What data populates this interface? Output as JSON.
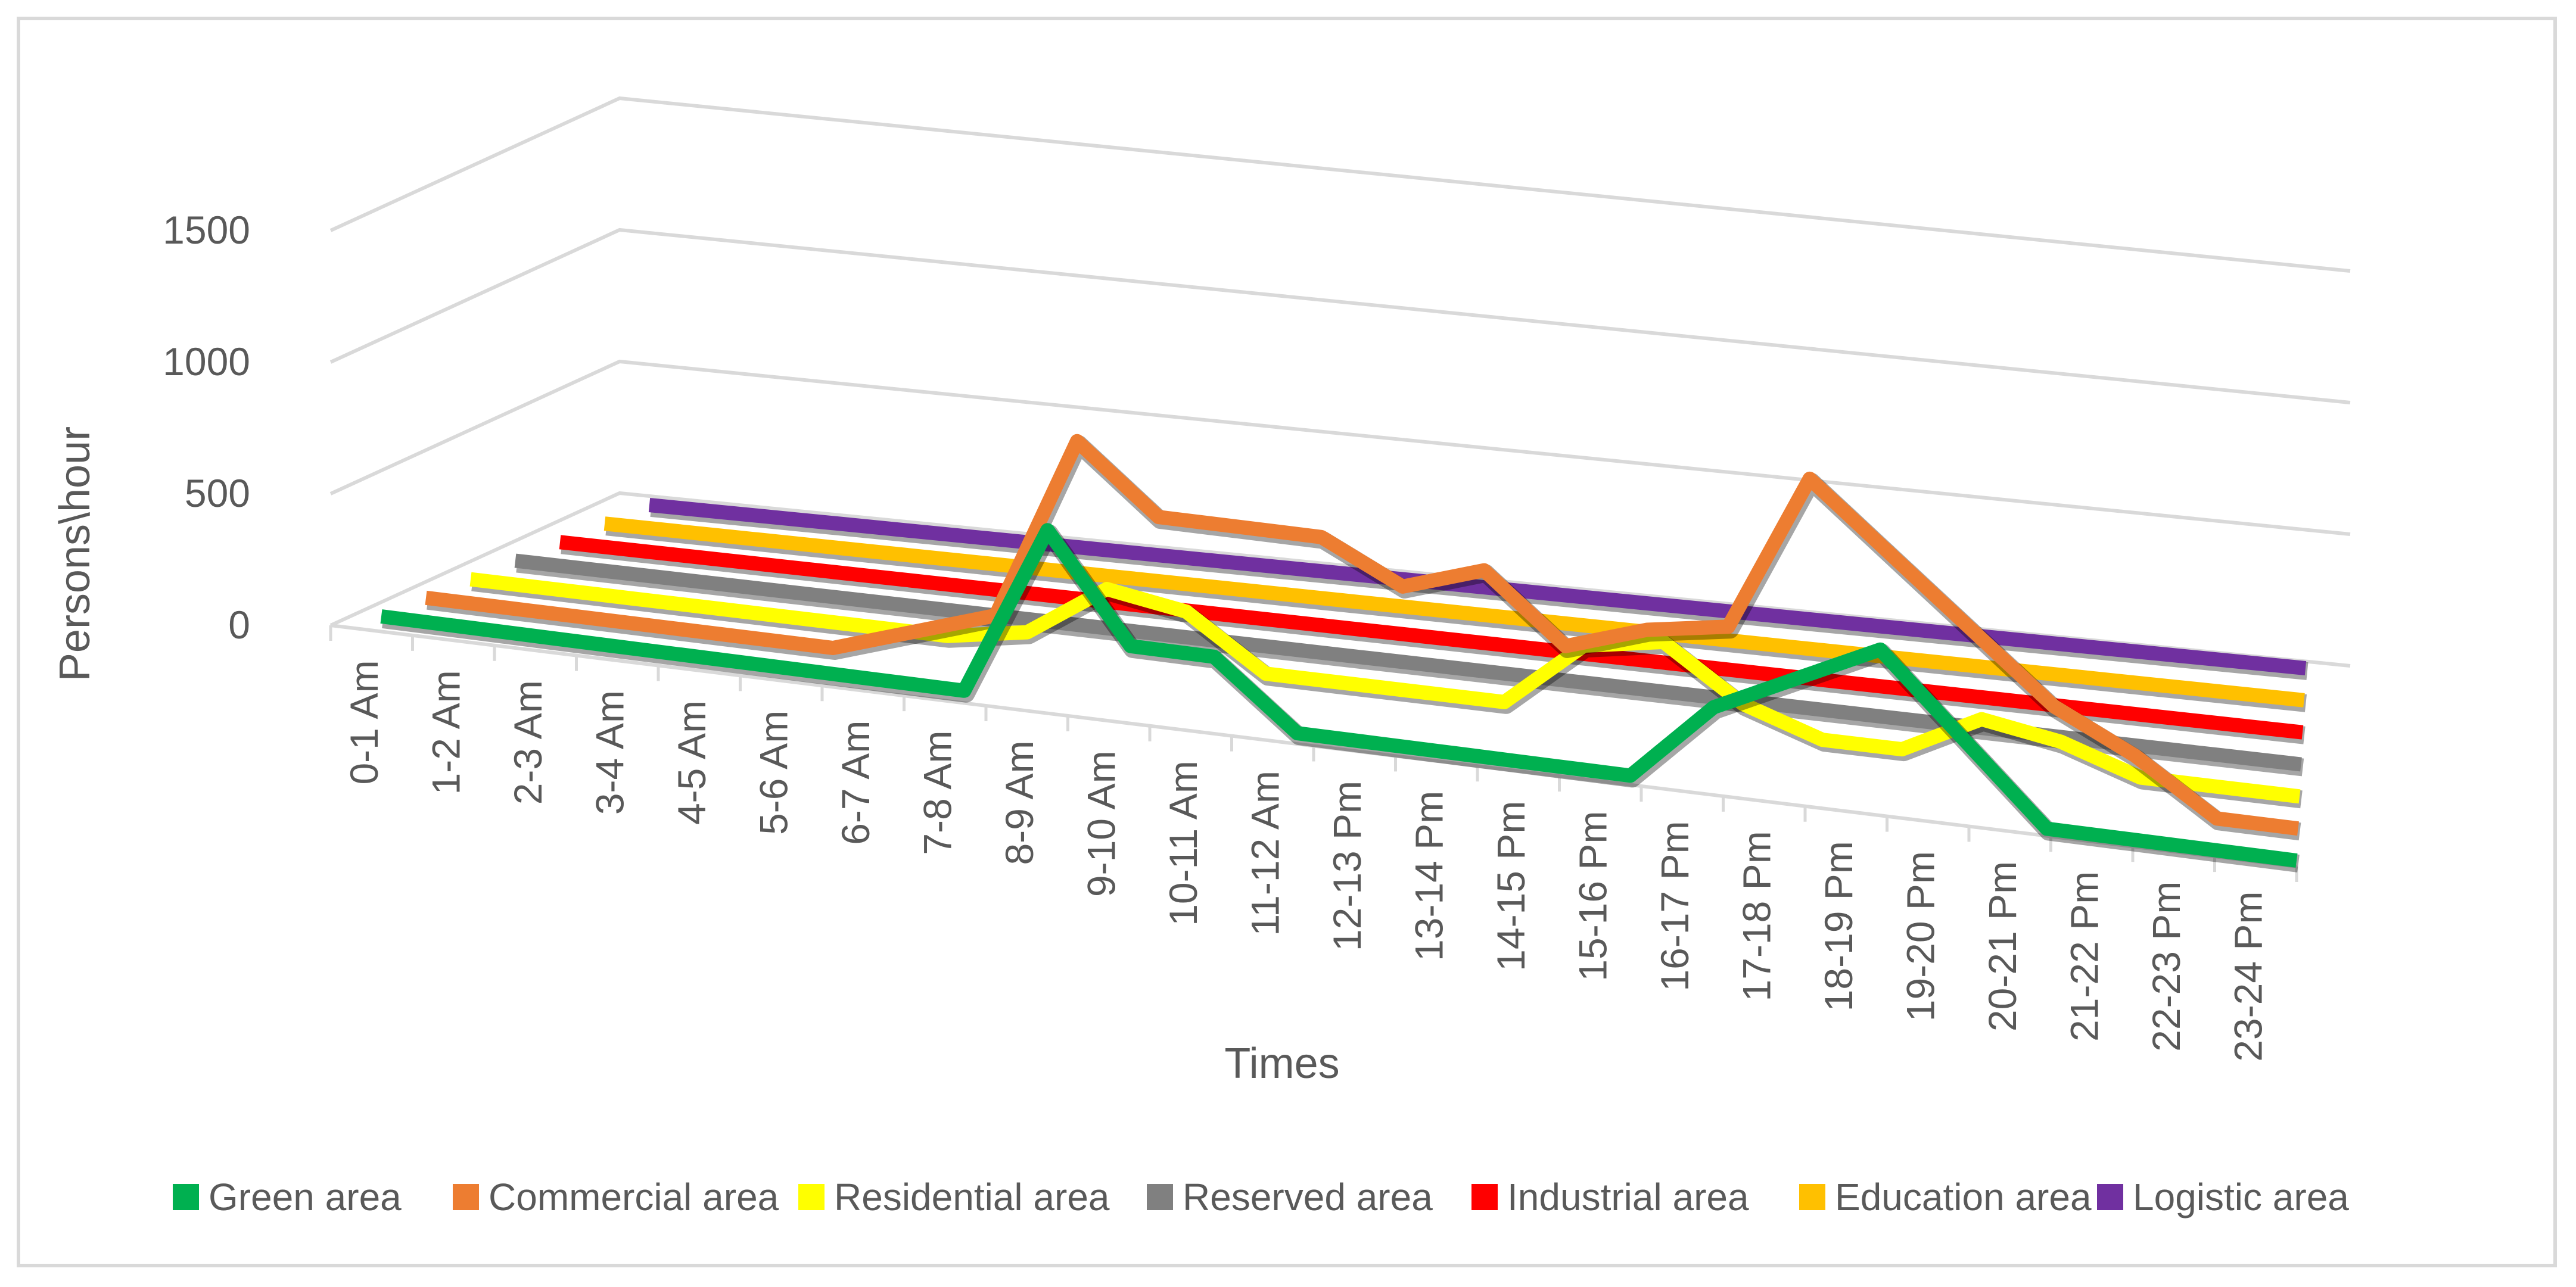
{
  "chart_data": {
    "type": "line",
    "title": "",
    "xlabel": "Times",
    "ylabel": "Persons\\hour",
    "ylim": [
      0,
      1500
    ],
    "yticks": [
      "0",
      "500",
      "1000",
      "1500"
    ],
    "grid": true,
    "legend_position": "bottom",
    "categories": [
      "0-1 Am",
      "1-2 Am",
      "2-3 Am",
      "3-4 Am",
      "4-5 Am",
      "5-6 Am",
      "6-7 Am",
      "7-8 Am",
      "8-9 Am",
      "9-10 Am",
      "10-11 Am",
      "11-12 Am",
      "12-13 Pm",
      "13-14 Pm",
      "14-15 Pm",
      "15-16 Pm",
      "16-17 Pm",
      "17-18 Pm",
      "18-19 Pm",
      "19-20 Pm",
      "20-21 Pm",
      "21-22 Pm",
      "22-23 Pm",
      "23-24 Pm"
    ],
    "series": [
      {
        "name": "Green area",
        "color": "#00b050",
        "values": [
          0,
          0,
          0,
          0,
          0,
          0,
          0,
          0,
          650,
          250,
          250,
          0,
          0,
          0,
          0,
          0,
          300,
          450,
          600,
          300,
          0,
          0,
          0,
          0
        ]
      },
      {
        "name": "Commercial area",
        "color": "#ed7d31",
        "values": [
          0,
          0,
          0,
          0,
          0,
          0,
          100,
          200,
          900,
          650,
          650,
          650,
          500,
          600,
          350,
          450,
          500,
          1100,
          850,
          600,
          350,
          200,
          0,
          0
        ]
      },
      {
        "name": "Residential area",
        "color": "#ffff00",
        "values": [
          0,
          0,
          0,
          0,
          0,
          0,
          0,
          50,
          250,
          200,
          0,
          0,
          0,
          0,
          250,
          300,
          100,
          0,
          0,
          150,
          100,
          0,
          0,
          0
        ]
      },
      {
        "name": "Reserved area",
        "color": "#808080",
        "values": [
          0,
          0,
          0,
          0,
          0,
          0,
          0,
          0,
          0,
          0,
          0,
          0,
          0,
          0,
          0,
          0,
          0,
          0,
          0,
          0,
          0,
          0,
          0,
          0
        ]
      },
      {
        "name": "Industrial area",
        "color": "#ff0000",
        "values": [
          0,
          0,
          0,
          0,
          0,
          0,
          0,
          0,
          0,
          0,
          0,
          0,
          0,
          0,
          0,
          0,
          0,
          0,
          0,
          0,
          0,
          0,
          0,
          0
        ]
      },
      {
        "name": "Education area",
        "color": "#ffc000",
        "values": [
          0,
          0,
          0,
          0,
          0,
          0,
          0,
          0,
          0,
          0,
          0,
          0,
          0,
          0,
          0,
          0,
          0,
          0,
          0,
          0,
          0,
          0,
          0,
          0
        ]
      },
      {
        "name": "Logistic area",
        "color": "#7030a0",
        "values": [
          0,
          0,
          0,
          0,
          0,
          0,
          0,
          0,
          0,
          0,
          0,
          0,
          0,
          0,
          0,
          0,
          0,
          0,
          0,
          0,
          0,
          0,
          0,
          0
        ]
      }
    ]
  }
}
